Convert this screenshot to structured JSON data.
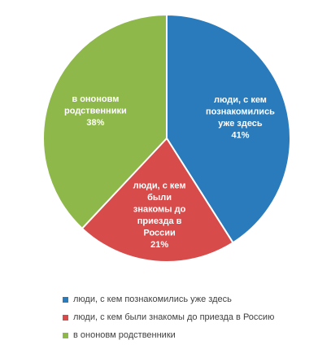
{
  "chart_data": {
    "type": "pie",
    "title": "",
    "categories": [
      "люди, с кем познакомились уже здесь",
      "люди, с кем были знакомы до приезда в Россию",
      "в ононовм родственники"
    ],
    "values": [
      41,
      21,
      38
    ],
    "unit": "%",
    "slice_labels": [
      [
        "люди, с кем",
        "познакомились",
        "уже здесь",
        "41%"
      ],
      [
        "люди, с кем",
        "были",
        "знакомы до",
        "приезда в",
        "России",
        "21%"
      ],
      [
        "в ононовм",
        "родственники",
        "38%"
      ]
    ],
    "colors": [
      "#2a7bbb",
      "#d74b4b",
      "#8fb84a"
    ],
    "legend_position": "bottom",
    "start_angle_deg": 0,
    "direction": "clockwise"
  }
}
